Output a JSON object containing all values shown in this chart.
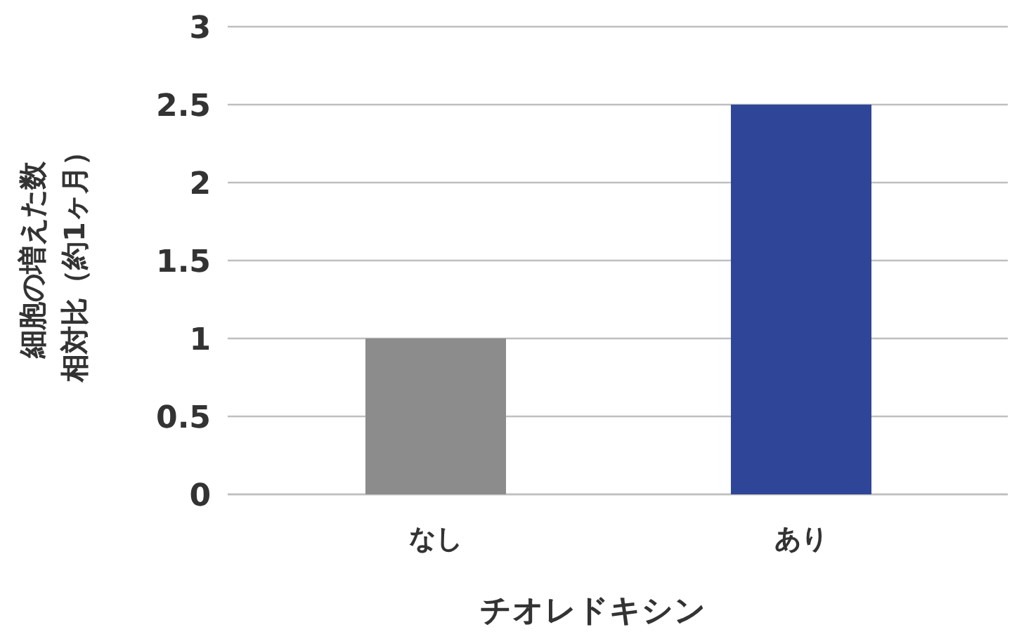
{
  "chart_data": {
    "type": "bar",
    "categories": [
      "なし",
      "あり"
    ],
    "values": [
      1,
      2.5
    ],
    "colors": [
      "#8c8c8c",
      "#2f4698"
    ],
    "xlabel": "チオレドキシン",
    "ylabel": "細胞の増えた数相対比（約1ヶ月）",
    "ylim": [
      0,
      3
    ],
    "yticks": [
      0,
      0.5,
      1,
      1.5,
      2,
      2.5,
      3
    ],
    "grid": "y"
  }
}
